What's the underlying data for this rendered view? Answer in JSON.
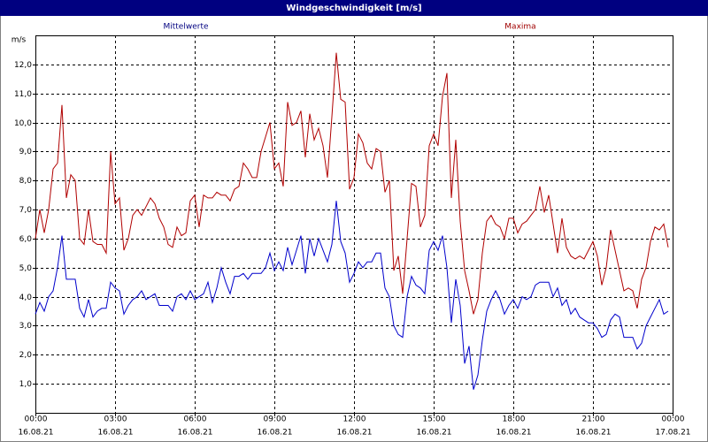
{
  "chart_data": {
    "type": "line",
    "title": "Windgeschwindigkeit [m/s]",
    "y_label": "m/s",
    "xlim": [
      0,
      1440
    ],
    "ylim": [
      0,
      13
    ],
    "grid": true,
    "xticks": [
      {
        "value": 0,
        "label": "00:00",
        "date": "16.08.21"
      },
      {
        "value": 180,
        "label": "03:00",
        "date": "16.08.21"
      },
      {
        "value": 360,
        "label": "06:00",
        "date": "16.08.21"
      },
      {
        "value": 540,
        "label": "09:00",
        "date": "16.08.21"
      },
      {
        "value": 720,
        "label": "12:00",
        "date": "16.08.21"
      },
      {
        "value": 900,
        "label": "15:00",
        "date": "16.08.21"
      },
      {
        "value": 1080,
        "label": "18:00",
        "date": "16.08.21"
      },
      {
        "value": 1260,
        "label": "21:00",
        "date": "16.08.21"
      },
      {
        "value": 1440,
        "label": "00:00",
        "date": "17.08.21"
      }
    ],
    "yticks": [
      {
        "value": 1,
        "label": "1,0"
      },
      {
        "value": 2,
        "label": "2,0"
      },
      {
        "value": 3,
        "label": "3,0"
      },
      {
        "value": 4,
        "label": "4,0"
      },
      {
        "value": 5,
        "label": "5,0"
      },
      {
        "value": 6,
        "label": "6,0"
      },
      {
        "value": 7,
        "label": "7,0"
      },
      {
        "value": 8,
        "label": "8,0"
      },
      {
        "value": 9,
        "label": "9,0"
      },
      {
        "value": 10,
        "label": "10,0"
      },
      {
        "value": 11,
        "label": "11,0"
      },
      {
        "value": 12,
        "label": "12,0"
      }
    ],
    "x": [
      0,
      10,
      20,
      30,
      40,
      50,
      60,
      70,
      80,
      90,
      100,
      110,
      120,
      130,
      140,
      150,
      160,
      170,
      180,
      190,
      200,
      210,
      220,
      230,
      240,
      250,
      260,
      270,
      280,
      290,
      300,
      310,
      320,
      330,
      340,
      350,
      360,
      370,
      380,
      390,
      400,
      410,
      420,
      430,
      440,
      450,
      460,
      470,
      480,
      490,
      500,
      510,
      520,
      530,
      540,
      550,
      560,
      570,
      580,
      590,
      600,
      610,
      620,
      630,
      640,
      650,
      660,
      670,
      680,
      690,
      700,
      710,
      720,
      730,
      740,
      750,
      760,
      770,
      780,
      790,
      800,
      810,
      820,
      830,
      840,
      850,
      860,
      870,
      880,
      890,
      900,
      910,
      920,
      930,
      940,
      950,
      960,
      970,
      980,
      990,
      1000,
      1010,
      1020,
      1030,
      1040,
      1050,
      1060,
      1070,
      1080,
      1090,
      1100,
      1110,
      1120,
      1130,
      1140,
      1150,
      1160,
      1170,
      1180,
      1190,
      1200,
      1210,
      1220,
      1230,
      1240,
      1250,
      1260,
      1270,
      1280,
      1290,
      1300,
      1310,
      1320,
      1330,
      1340,
      1350,
      1360,
      1370,
      1380,
      1390,
      1400,
      1410,
      1420,
      1430
    ],
    "series": [
      {
        "name": "Mittelwerte",
        "color": "#0000cc",
        "label_color": "#000080",
        "legend_position": "top-left",
        "values": [
          3.4,
          3.8,
          3.5,
          4.0,
          4.2,
          5.0,
          6.1,
          4.6,
          4.6,
          4.6,
          3.6,
          3.3,
          3.9,
          3.3,
          3.5,
          3.6,
          3.6,
          4.5,
          4.3,
          4.2,
          3.4,
          3.7,
          3.9,
          4.0,
          4.2,
          3.9,
          4.0,
          4.1,
          3.7,
          3.7,
          3.7,
          3.5,
          4.0,
          4.1,
          3.9,
          4.2,
          3.9,
          4.0,
          4.1,
          4.5,
          3.8,
          4.3,
          5.0,
          4.5,
          4.1,
          4.7,
          4.7,
          4.8,
          4.6,
          4.8,
          4.8,
          4.8,
          5.0,
          5.5,
          4.9,
          5.2,
          4.9,
          5.7,
          5.1,
          5.6,
          6.1,
          4.8,
          6.0,
          5.4,
          6.0,
          5.6,
          5.2,
          5.8,
          7.3,
          5.9,
          5.5,
          4.5,
          4.8,
          5.2,
          5.0,
          5.2,
          5.2,
          5.5,
          5.5,
          4.3,
          4.0,
          3.0,
          2.7,
          2.6,
          4.0,
          4.7,
          4.4,
          4.3,
          4.1,
          5.6,
          5.9,
          5.6,
          6.1,
          5.0,
          3.1,
          4.6,
          3.7,
          1.7,
          2.3,
          0.8,
          1.3,
          2.5,
          3.5,
          3.9,
          4.2,
          3.9,
          3.4,
          3.7,
          3.9,
          3.6,
          4.0,
          3.9,
          4.0,
          4.4,
          4.5,
          4.5,
          4.5,
          4.0,
          4.3,
          3.7,
          3.9,
          3.4,
          3.6,
          3.3,
          3.2,
          3.1,
          3.1,
          2.9,
          2.6,
          2.7,
          3.2,
          3.4,
          3.3,
          2.6,
          2.6,
          2.6,
          2.2,
          2.4,
          3.0,
          3.3,
          3.6,
          3.9,
          3.4,
          3.5
        ]
      },
      {
        "name": "Maxima",
        "color": "#b00000",
        "label_color": "#a00000",
        "legend_position": "top-right",
        "values": [
          6.0,
          7.0,
          6.2,
          7.0,
          8.4,
          8.6,
          10.6,
          7.4,
          8.2,
          8.0,
          6.0,
          5.8,
          7.0,
          5.9,
          5.8,
          5.8,
          5.5,
          9.0,
          7.2,
          7.4,
          5.6,
          6.0,
          6.8,
          7.0,
          6.8,
          7.1,
          7.4,
          7.2,
          6.7,
          6.4,
          5.8,
          5.7,
          6.4,
          6.1,
          6.2,
          7.3,
          7.5,
          6.4,
          7.5,
          7.4,
          7.4,
          7.6,
          7.5,
          7.5,
          7.3,
          7.7,
          7.8,
          8.6,
          8.4,
          8.1,
          8.1,
          9.0,
          9.5,
          10.0,
          8.4,
          8.6,
          7.8,
          10.7,
          9.9,
          10.0,
          10.4,
          8.8,
          10.3,
          9.4,
          9.8,
          9.2,
          8.1,
          10.2,
          12.4,
          10.8,
          10.7,
          7.7,
          8.1,
          9.6,
          9.3,
          8.6,
          8.4,
          9.1,
          9.0,
          7.6,
          8.0,
          4.9,
          5.4,
          4.1,
          6.0,
          7.9,
          7.8,
          6.4,
          6.8,
          9.2,
          9.6,
          9.2,
          10.9,
          11.7,
          7.4,
          9.4,
          6.6,
          4.9,
          4.2,
          3.4,
          3.9,
          5.5,
          6.6,
          6.8,
          6.5,
          6.4,
          6.0,
          6.7,
          6.7,
          6.2,
          6.5,
          6.6,
          6.8,
          7.0,
          7.8,
          6.9,
          7.5,
          6.5,
          5.5,
          6.7,
          5.7,
          5.4,
          5.3,
          5.4,
          5.3,
          5.6,
          5.9,
          5.4,
          4.4,
          5.0,
          6.3,
          5.6,
          4.9,
          4.2,
          4.3,
          4.2,
          3.6,
          4.6,
          5.0,
          5.9,
          6.4,
          6.3,
          6.5,
          5.7
        ]
      }
    ]
  }
}
